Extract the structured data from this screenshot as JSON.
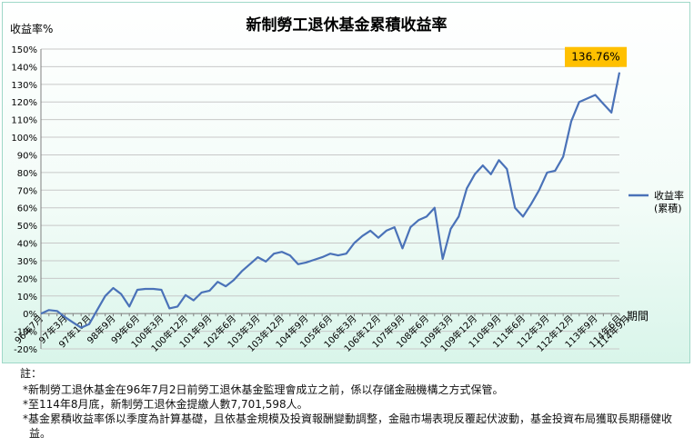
{
  "chart_data": {
    "type": "line",
    "title": "新制勞工退休基金累積收益率",
    "ylabel": "收益率%",
    "xlabel": "期間",
    "ylim": [
      -20,
      150
    ],
    "yticks": [
      -20,
      -10,
      0,
      10,
      20,
      30,
      40,
      50,
      60,
      70,
      80,
      90,
      100,
      110,
      120,
      130,
      140,
      150
    ],
    "ytick_format": "{v}%",
    "grid": true,
    "legend_position": "right",
    "series": [
      {
        "name": "收益率\n(累積)",
        "color": "#4a72b8",
        "values": [
          0,
          2,
          1.5,
          -2,
          -5,
          -8,
          -6,
          2,
          10,
          14.5,
          11,
          4,
          13.5,
          14,
          14,
          13.5,
          3,
          4,
          10.5,
          7.5,
          12,
          13,
          18,
          15.5,
          19,
          24,
          28,
          32,
          29.5,
          34,
          35,
          33,
          28,
          29,
          30.5,
          32,
          34,
          33,
          34,
          40,
          44,
          47,
          43,
          47,
          49,
          37,
          49,
          53,
          55,
          60,
          31,
          48,
          55,
          71,
          79,
          84,
          79,
          87,
          82,
          60,
          55,
          62,
          70,
          80,
          81,
          89,
          109,
          120,
          122,
          124,
          119,
          114,
          136.76
        ]
      }
    ],
    "x_tick_labels": [
      "96年7月",
      "97年3月",
      "97年12月",
      "98年9月",
      "99年6月",
      "100年3月",
      "100年12月",
      "101年9月",
      "102年6月",
      "103年3月",
      "103年12月",
      "104年9月",
      "105年6月",
      "106年3月",
      "106年12月",
      "107年9月",
      "108年6月",
      "109年3月",
      "109年12月",
      "110年9月",
      "111年6月",
      "112年3月",
      "112年12月",
      "113年9月",
      "114年6月",
      "114年9月"
    ],
    "x_tick_indices": [
      0,
      3,
      6,
      9,
      12,
      15,
      18,
      21,
      24,
      27,
      30,
      33,
      36,
      39,
      42,
      45,
      48,
      51,
      54,
      57,
      60,
      63,
      66,
      69,
      72,
      73
    ],
    "annotation": {
      "text": "136.76%",
      "fill": "#ffc000"
    }
  },
  "notes": {
    "heading": "註：",
    "items": [
      "*新制勞工退休基金在96年7月2日前勞工退休基金監理會成立之前，係以存儲金融機構之方式保管。",
      "*至114年8月底，新制勞工退休金提繳人數7,701,598人。",
      "*基金累積收益率係以季度為計算基礎，且依基金規模及投資報酬變動調整，金融市場表現反覆起伏波動，基金投資布局獲取長期穩健收益。"
    ]
  }
}
